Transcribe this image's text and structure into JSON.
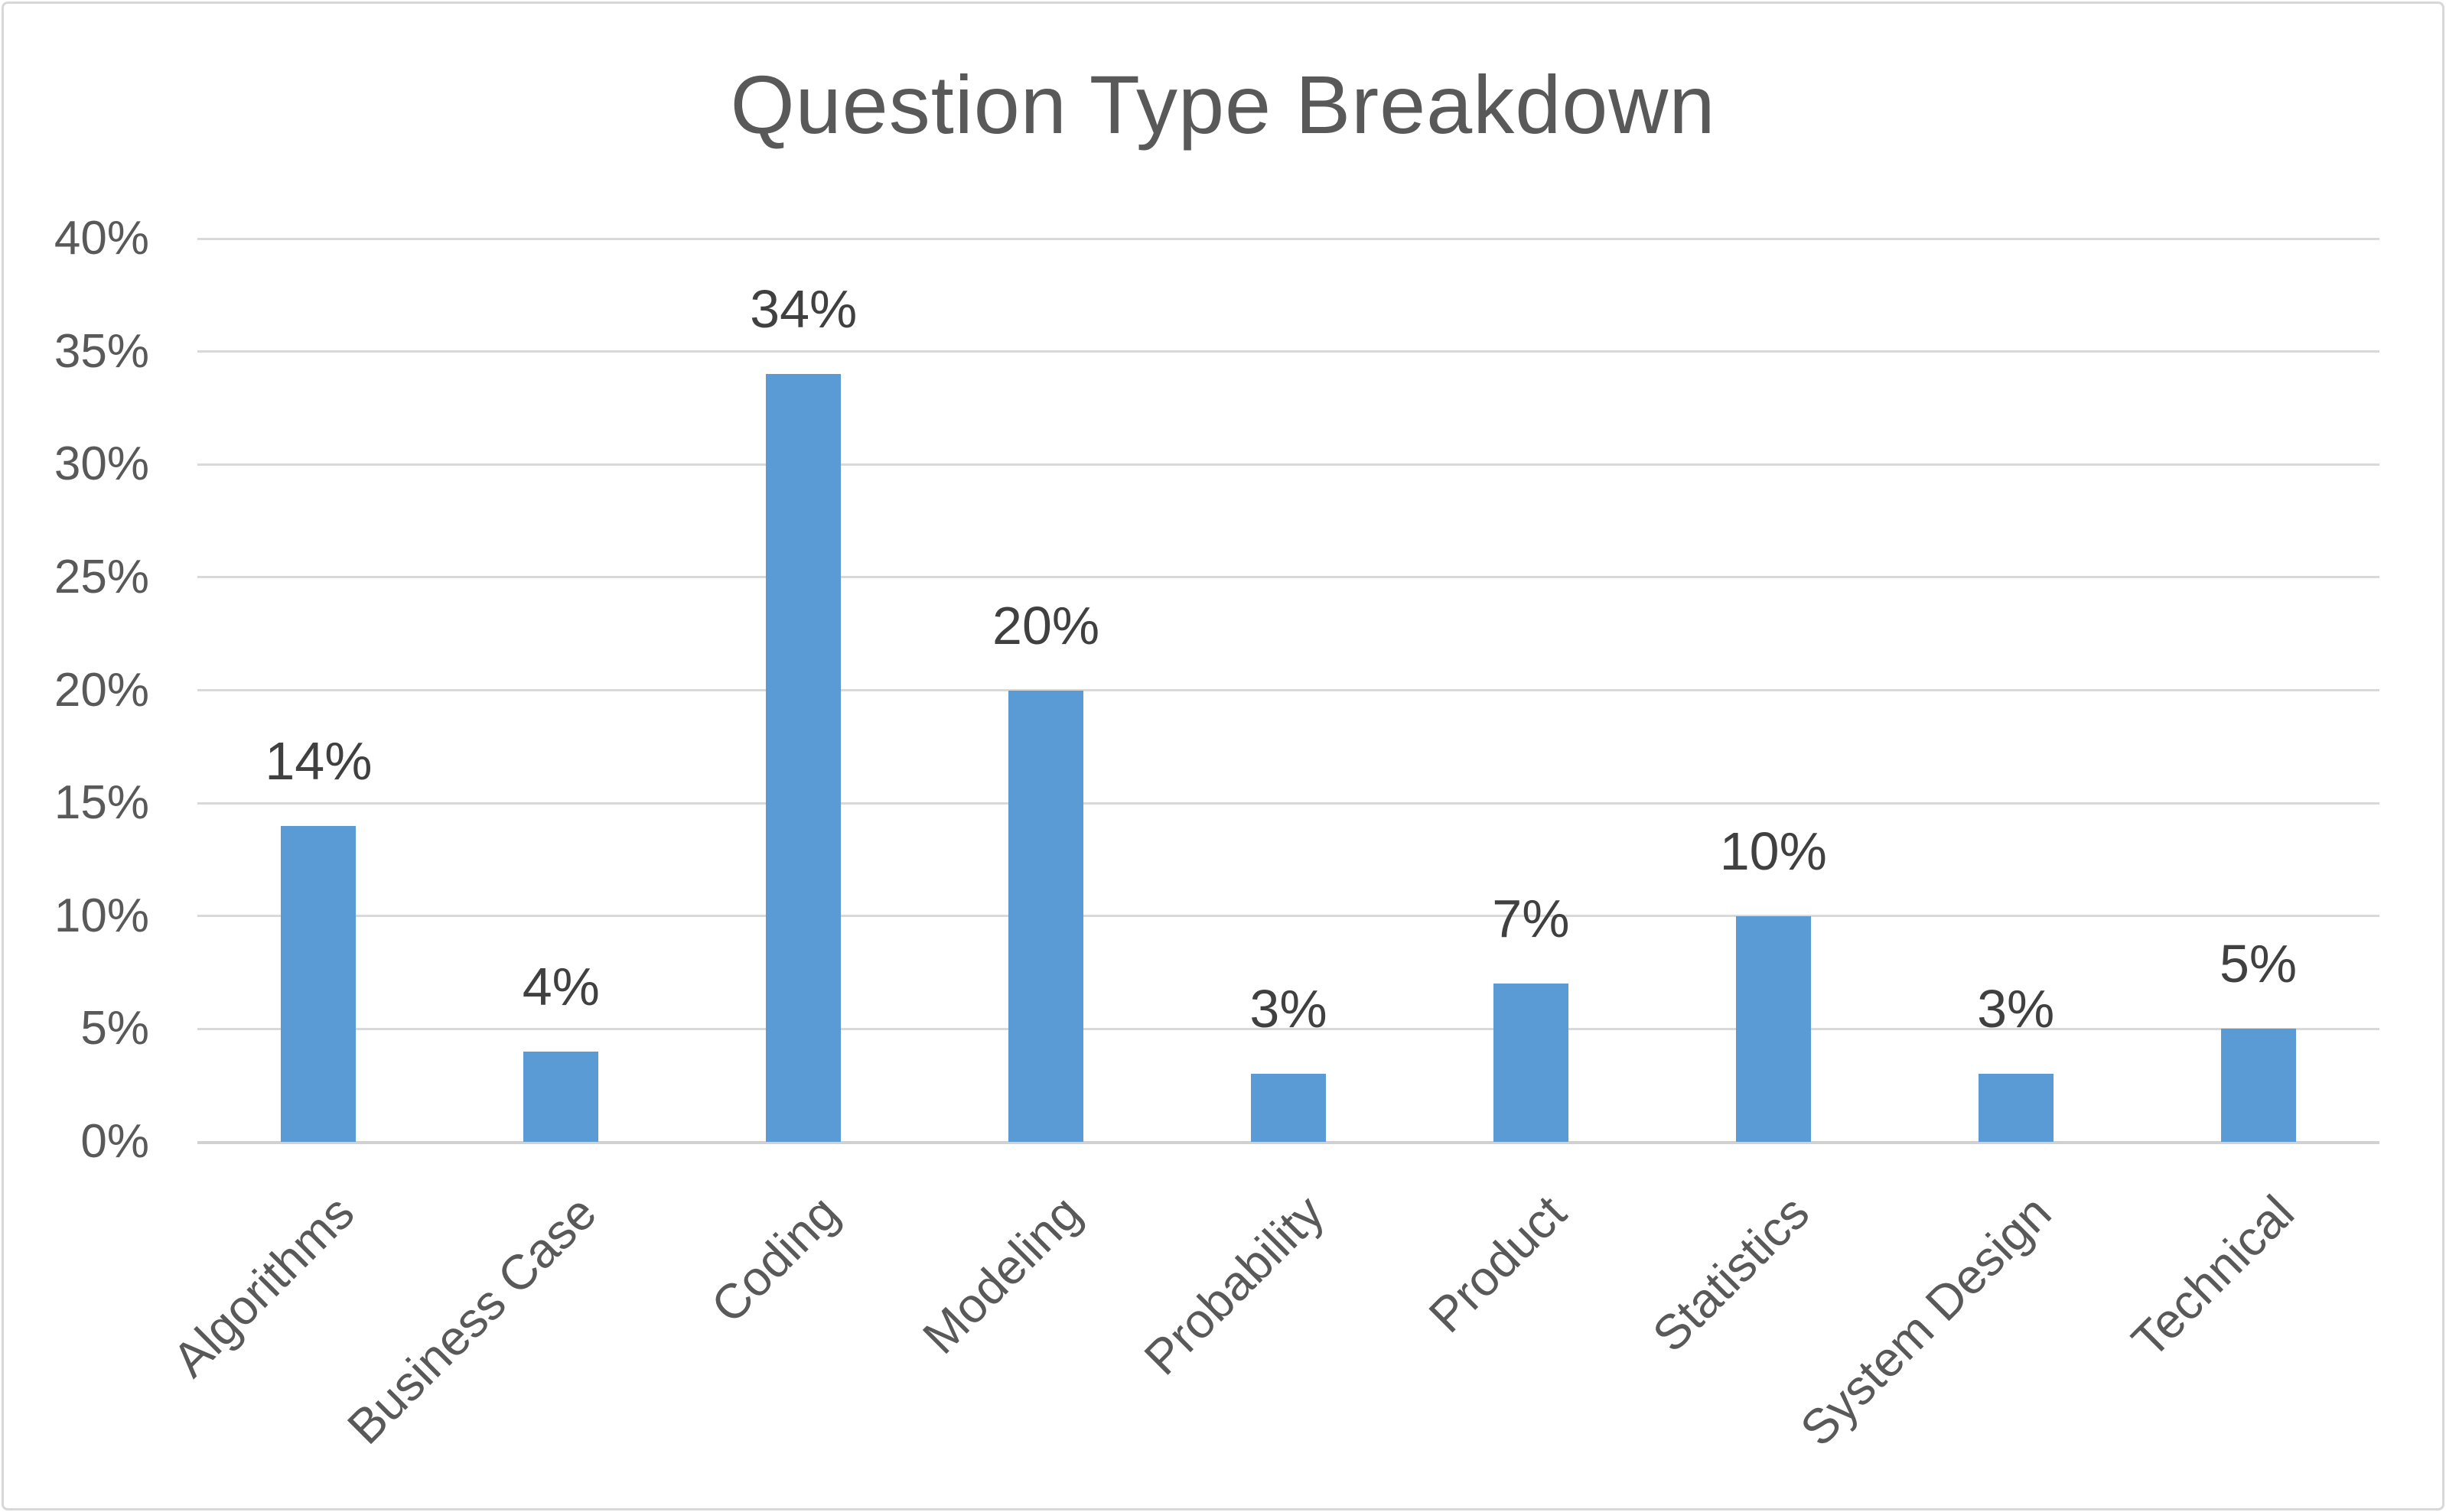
{
  "chart_data": {
    "type": "bar",
    "title": "Question Type Breakdown",
    "categories": [
      "Algorithms",
      "Business Case",
      "Coding",
      "Modeling",
      "Probability",
      "Product",
      "Statistics",
      "System Design",
      "Technical"
    ],
    "values": [
      14,
      4,
      34,
      20,
      3,
      7,
      10,
      3,
      5
    ],
    "data_labels": [
      "14%",
      "4%",
      "34%",
      "20%",
      "3%",
      "7%",
      "10%",
      "3%",
      "5%"
    ],
    "xlabel": "",
    "ylabel": "",
    "ylim": [
      0,
      40
    ],
    "yticks": [
      {
        "value": 0,
        "label": "0%"
      },
      {
        "value": 5,
        "label": "5%"
      },
      {
        "value": 10,
        "label": "10%"
      },
      {
        "value": 15,
        "label": "15%"
      },
      {
        "value": 20,
        "label": "20%"
      },
      {
        "value": 25,
        "label": "25%"
      },
      {
        "value": 30,
        "label": "30%"
      },
      {
        "value": 35,
        "label": "35%"
      },
      {
        "value": 40,
        "label": "40%"
      }
    ],
    "grid": "horizontal",
    "legend": "none",
    "colors": {
      "bar": "#5B9BD5",
      "gridline": "#D9D9D9",
      "axis_line": "#D1D1D1",
      "title_text": "#595959",
      "tick_text": "#595959",
      "category_text": "#595959",
      "data_label_text": "#404040",
      "border": "#D8D8D8",
      "background": "#FFFFFF"
    }
  }
}
